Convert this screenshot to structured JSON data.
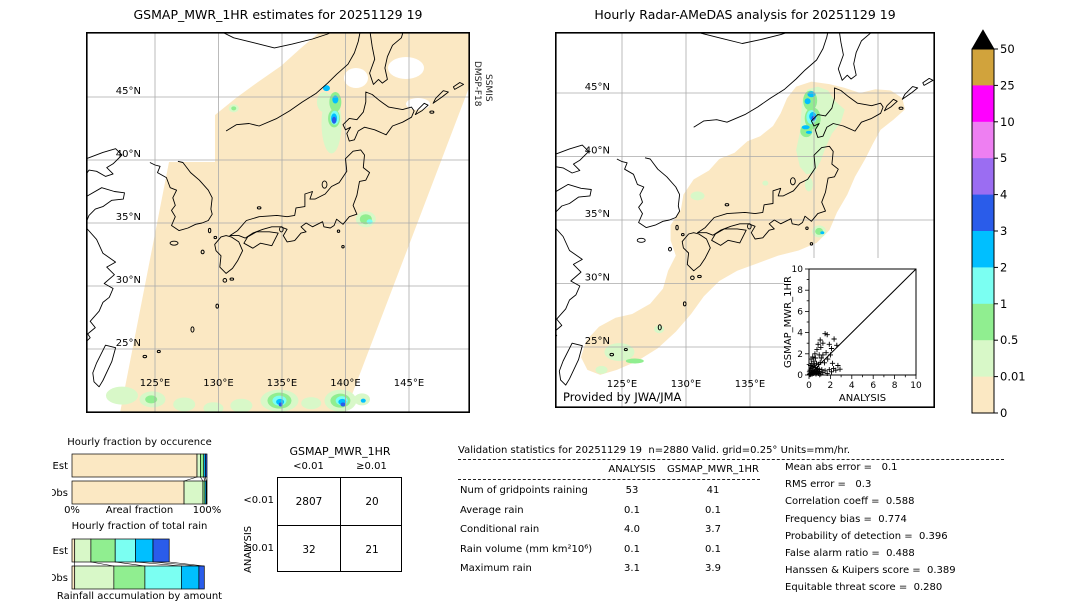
{
  "left_map": {
    "title": "GSMAP_MWR_1HR estimates for 20251129 19",
    "sensor_lines": [
      "DMSP-F18",
      "SSMIS"
    ],
    "lat_labels": [
      "45°N",
      "40°N",
      "35°N",
      "30°N",
      "25°N"
    ],
    "lon_labels": [
      "125°E",
      "130°E",
      "135°E",
      "140°E",
      "145°E"
    ]
  },
  "right_map": {
    "title": "Hourly Radar-AMeDAS analysis for 20251129 19",
    "credit": "Provided by JWA/JMA",
    "lat_labels": [
      "45°N",
      "40°N",
      "35°N",
      "30°N",
      "25°N"
    ],
    "lon_labels": [
      "125°E",
      "130°E",
      "135°E"
    ]
  },
  "colorbar": {
    "tick_labels": [
      "50",
      "25",
      "10",
      "5",
      "4",
      "3",
      "2",
      "1",
      "0.5",
      "0.01",
      "0"
    ],
    "colors_top_to_bottom": [
      "#d1a33c",
      "#ff00ff",
      "#ee7ff2",
      "#9b6df2",
      "#2a5cea",
      "#00bfff",
      "#7bfff2",
      "#90ee90",
      "#d8f8c8",
      "#fbe8c3"
    ],
    "overflow_color": "#000000"
  },
  "chart_data": [
    {
      "id": "hourly_fraction_by_occurrence",
      "type": "bar",
      "stacked": true,
      "orientation": "horizontal",
      "title": "Hourly fraction by occurence",
      "categories": [
        "Est",
        "Obs"
      ],
      "xlabel": "Areal fraction",
      "x_tick_labels": [
        "0%",
        "100%"
      ],
      "xlim": [
        0,
        100
      ],
      "segment_colors": [
        "#fbe8c3",
        "#d8f8c8",
        "#90ee90",
        "#00bfff",
        "#2a5cea"
      ],
      "series": [
        {
          "name": "Est",
          "values": [
            92.6,
            2.5,
            2.5,
            1.2,
            1.2
          ]
        },
        {
          "name": "Obs",
          "values": [
            83,
            14,
            1.5,
            1,
            0.5
          ]
        }
      ]
    },
    {
      "id": "hourly_fraction_of_total_rain",
      "type": "bar",
      "stacked": true,
      "orientation": "horizontal",
      "title": "Hourly fraction of total rain",
      "caption": "Rainfall accumulation by amount",
      "categories": [
        "Est",
        "Obs"
      ],
      "xlim": [
        0,
        100
      ],
      "segment_colors": [
        "#fbe8c3",
        "#d8f8c8",
        "#90ee90",
        "#7bfff2",
        "#00bfff",
        "#2a5cea"
      ],
      "series": [
        {
          "name": "Est",
          "values": [
            2,
            12,
            18,
            15,
            13,
            12
          ]
        },
        {
          "name": "Obs",
          "values": [
            2,
            29,
            23,
            27,
            13,
            4
          ]
        }
      ]
    },
    {
      "id": "contingency_table",
      "type": "table",
      "col_header": "GSMAP_MWR_1HR",
      "row_header": "ANALYSIS",
      "col_labels": [
        "<0.01",
        "≥0.01"
      ],
      "row_labels": [
        "<0.01",
        "≥0.01"
      ],
      "cells": [
        [
          "2807",
          "20"
        ],
        [
          "32",
          "21"
        ]
      ]
    },
    {
      "id": "validation_statistics",
      "type": "table",
      "title": "Validation statistics for 20251129 19  n=2880 Valid. grid=0.25° Units=mm/hr.",
      "columns": [
        "ANALYSIS",
        "GSMAP_MWR_1HR"
      ],
      "rows": [
        [
          "Num of gridpoints raining",
          "53",
          "41"
        ],
        [
          "Average rain",
          "0.1",
          "0.1"
        ],
        [
          "Conditional rain",
          "4.0",
          "3.7"
        ],
        [
          "Rain volume (mm km²10⁶)",
          "0.1",
          "0.1"
        ],
        [
          "Maximum rain",
          "3.1",
          "3.9"
        ]
      ]
    },
    {
      "id": "skill_scores",
      "type": "table",
      "rows": [
        [
          "Mean abs error",
          "0.1"
        ],
        [
          "RMS error",
          "0.3"
        ],
        [
          "Correlation coeff",
          "0.588"
        ],
        [
          "Frequency bias",
          "0.774"
        ],
        [
          "Probability of detection",
          "0.396"
        ],
        [
          "False alarm ratio",
          "0.488"
        ],
        [
          "Hanssen & Kuipers score",
          "0.389"
        ],
        [
          "Equitable threat score",
          "0.280"
        ]
      ]
    },
    {
      "id": "scatter_inset",
      "type": "scatter",
      "xlabel": "ANALYSIS",
      "ylabel": "GSMAP_MWR_1HR",
      "xlim": [
        0,
        10
      ],
      "ylim": [
        0,
        10
      ],
      "x_ticks": [
        0,
        2,
        4,
        6,
        8,
        10
      ],
      "y_ticks": [
        0,
        2,
        4,
        6,
        8,
        10
      ],
      "marker": "+",
      "identity_line": true,
      "points": [
        [
          0.05,
          0.05
        ],
        [
          0.1,
          0.15
        ],
        [
          0.15,
          0.05
        ],
        [
          0.2,
          0.1
        ],
        [
          0.25,
          0.2
        ],
        [
          0.3,
          0.1
        ],
        [
          0.35,
          0.3
        ],
        [
          0.4,
          0.15
        ],
        [
          0.45,
          0.35
        ],
        [
          0.5,
          0.2
        ],
        [
          0.55,
          0.45
        ],
        [
          0.6,
          0.3
        ],
        [
          0.65,
          0.1
        ],
        [
          0.7,
          0.5
        ],
        [
          0.75,
          0.25
        ],
        [
          0.8,
          0.6
        ],
        [
          0.85,
          0.35
        ],
        [
          0.9,
          0.15
        ],
        [
          0.95,
          0.55
        ],
        [
          0.05,
          0.3
        ],
        [
          0.1,
          0.45
        ],
        [
          0.2,
          0.6
        ],
        [
          0.3,
          0.75
        ],
        [
          0.15,
          0.9
        ],
        [
          0.4,
          0.8
        ],
        [
          0.5,
          0.95
        ],
        [
          0.6,
          0.7
        ],
        [
          0.25,
          1.1
        ],
        [
          0.45,
          1.3
        ],
        [
          0.7,
          1.1
        ],
        [
          0.9,
          1.0
        ],
        [
          1.0,
          0.3
        ],
        [
          1.1,
          0.1
        ],
        [
          1.2,
          0.5
        ],
        [
          1.3,
          0.25
        ],
        [
          1.5,
          0.4
        ],
        [
          1.7,
          0.15
        ],
        [
          1.9,
          0.5
        ],
        [
          2.1,
          0.3
        ],
        [
          2.3,
          0.6
        ],
        [
          2.5,
          0.45
        ],
        [
          2.7,
          0.9
        ],
        [
          2.9,
          0.55
        ],
        [
          1.05,
          1.2
        ],
        [
          1.15,
          1.6
        ],
        [
          1.3,
          1.9
        ],
        [
          1.45,
          1.15
        ],
        [
          1.6,
          2.1
        ],
        [
          1.75,
          1.5
        ],
        [
          0.35,
          1.7
        ],
        [
          0.55,
          2.0
        ],
        [
          0.75,
          2.4
        ],
        [
          0.95,
          1.9
        ],
        [
          1.1,
          2.6
        ],
        [
          1.3,
          3.0
        ],
        [
          1.5,
          3.9
        ],
        [
          1.7,
          3.8
        ],
        [
          1.9,
          2.9
        ],
        [
          2.1,
          2.5
        ],
        [
          2.35,
          3.4
        ],
        [
          2.6,
          2.8
        ],
        [
          0.2,
          1.5
        ],
        [
          0.6,
          1.6
        ],
        [
          2.0,
          1.9
        ],
        [
          2.2,
          1.1
        ],
        [
          0.85,
          2.9
        ],
        [
          1.05,
          3.3
        ]
      ]
    },
    {
      "id": "precipitation_colorbar",
      "type": "colorbar",
      "levels_mm_per_hr": [
        0,
        0.01,
        0.5,
        1,
        2,
        3,
        4,
        5,
        10,
        25,
        50
      ],
      "colors_low_to_high": [
        "#fbe8c3",
        "#d8f8c8",
        "#90ee90",
        "#7bfff2",
        "#00bfff",
        "#2a5cea",
        "#9b6df2",
        "#ee7ff2",
        "#ff00ff",
        "#d1a33c"
      ],
      "over_color": "#000000"
    }
  ]
}
